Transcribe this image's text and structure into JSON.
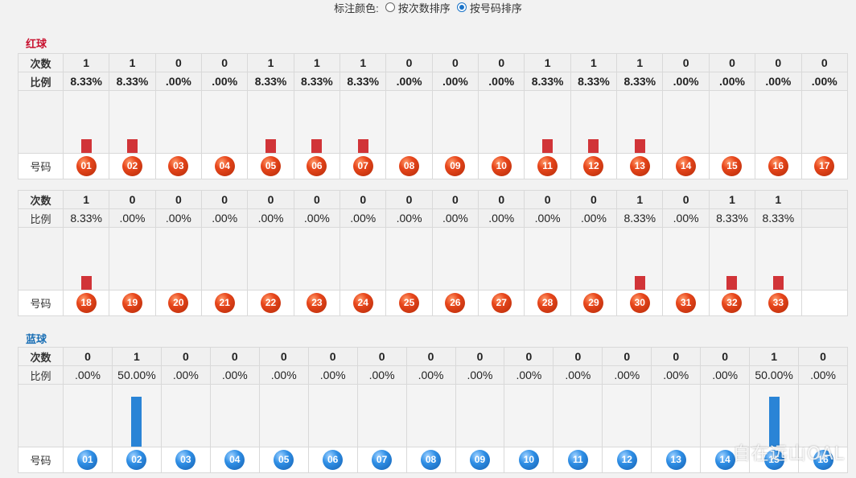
{
  "top": {
    "label": "标注颜色:",
    "option1": "按次数排序",
    "option2": "按号码排序",
    "selected": "option2"
  },
  "red": {
    "title": "红球",
    "row_labels": {
      "count": "次数",
      "ratio": "比例",
      "number": "号码"
    },
    "group1": {
      "numbers": [
        "01",
        "02",
        "03",
        "04",
        "05",
        "06",
        "07",
        "08",
        "09",
        "10",
        "11",
        "12",
        "13",
        "14",
        "15",
        "16",
        "17"
      ],
      "counts": [
        "1",
        "1",
        "0",
        "0",
        "1",
        "1",
        "1",
        "0",
        "0",
        "0",
        "1",
        "1",
        "1",
        "0",
        "0",
        "0",
        "0"
      ],
      "ratios": [
        "8.33%",
        "8.33%",
        ".00%",
        ".00%",
        "8.33%",
        "8.33%",
        "8.33%",
        ".00%",
        ".00%",
        ".00%",
        "8.33%",
        "8.33%",
        "8.33%",
        ".00%",
        ".00%",
        ".00%",
        ".00%"
      ]
    },
    "group2": {
      "numbers": [
        "18",
        "19",
        "20",
        "21",
        "22",
        "23",
        "24",
        "25",
        "26",
        "27",
        "28",
        "29",
        "30",
        "31",
        "32",
        "33"
      ],
      "counts": [
        "1",
        "0",
        "0",
        "0",
        "0",
        "0",
        "0",
        "0",
        "0",
        "0",
        "0",
        "0",
        "1",
        "0",
        "1",
        "1"
      ],
      "ratios": [
        "8.33%",
        ".00%",
        ".00%",
        ".00%",
        ".00%",
        ".00%",
        ".00%",
        ".00%",
        ".00%",
        ".00%",
        ".00%",
        ".00%",
        "8.33%",
        ".00%",
        "8.33%",
        "8.33%"
      ]
    },
    "color": "#d13438"
  },
  "blue": {
    "title": "蓝球",
    "row_labels": {
      "count": "次数",
      "ratio": "比例",
      "number": "号码"
    },
    "numbers": [
      "01",
      "02",
      "03",
      "04",
      "05",
      "06",
      "07",
      "08",
      "09",
      "10",
      "11",
      "12",
      "13",
      "14",
      "15",
      "16"
    ],
    "counts": [
      "0",
      "1",
      "0",
      "0",
      "0",
      "0",
      "0",
      "0",
      "0",
      "0",
      "0",
      "0",
      "0",
      "0",
      "1",
      "0"
    ],
    "ratios": [
      ".00%",
      "50.00%",
      ".00%",
      ".00%",
      ".00%",
      ".00%",
      ".00%",
      ".00%",
      ".00%",
      ".00%",
      ".00%",
      ".00%",
      ".00%",
      ".00%",
      "50.00%",
      ".00%"
    ],
    "color": "#2a84d6"
  },
  "watermark": "自在远山OAL"
}
